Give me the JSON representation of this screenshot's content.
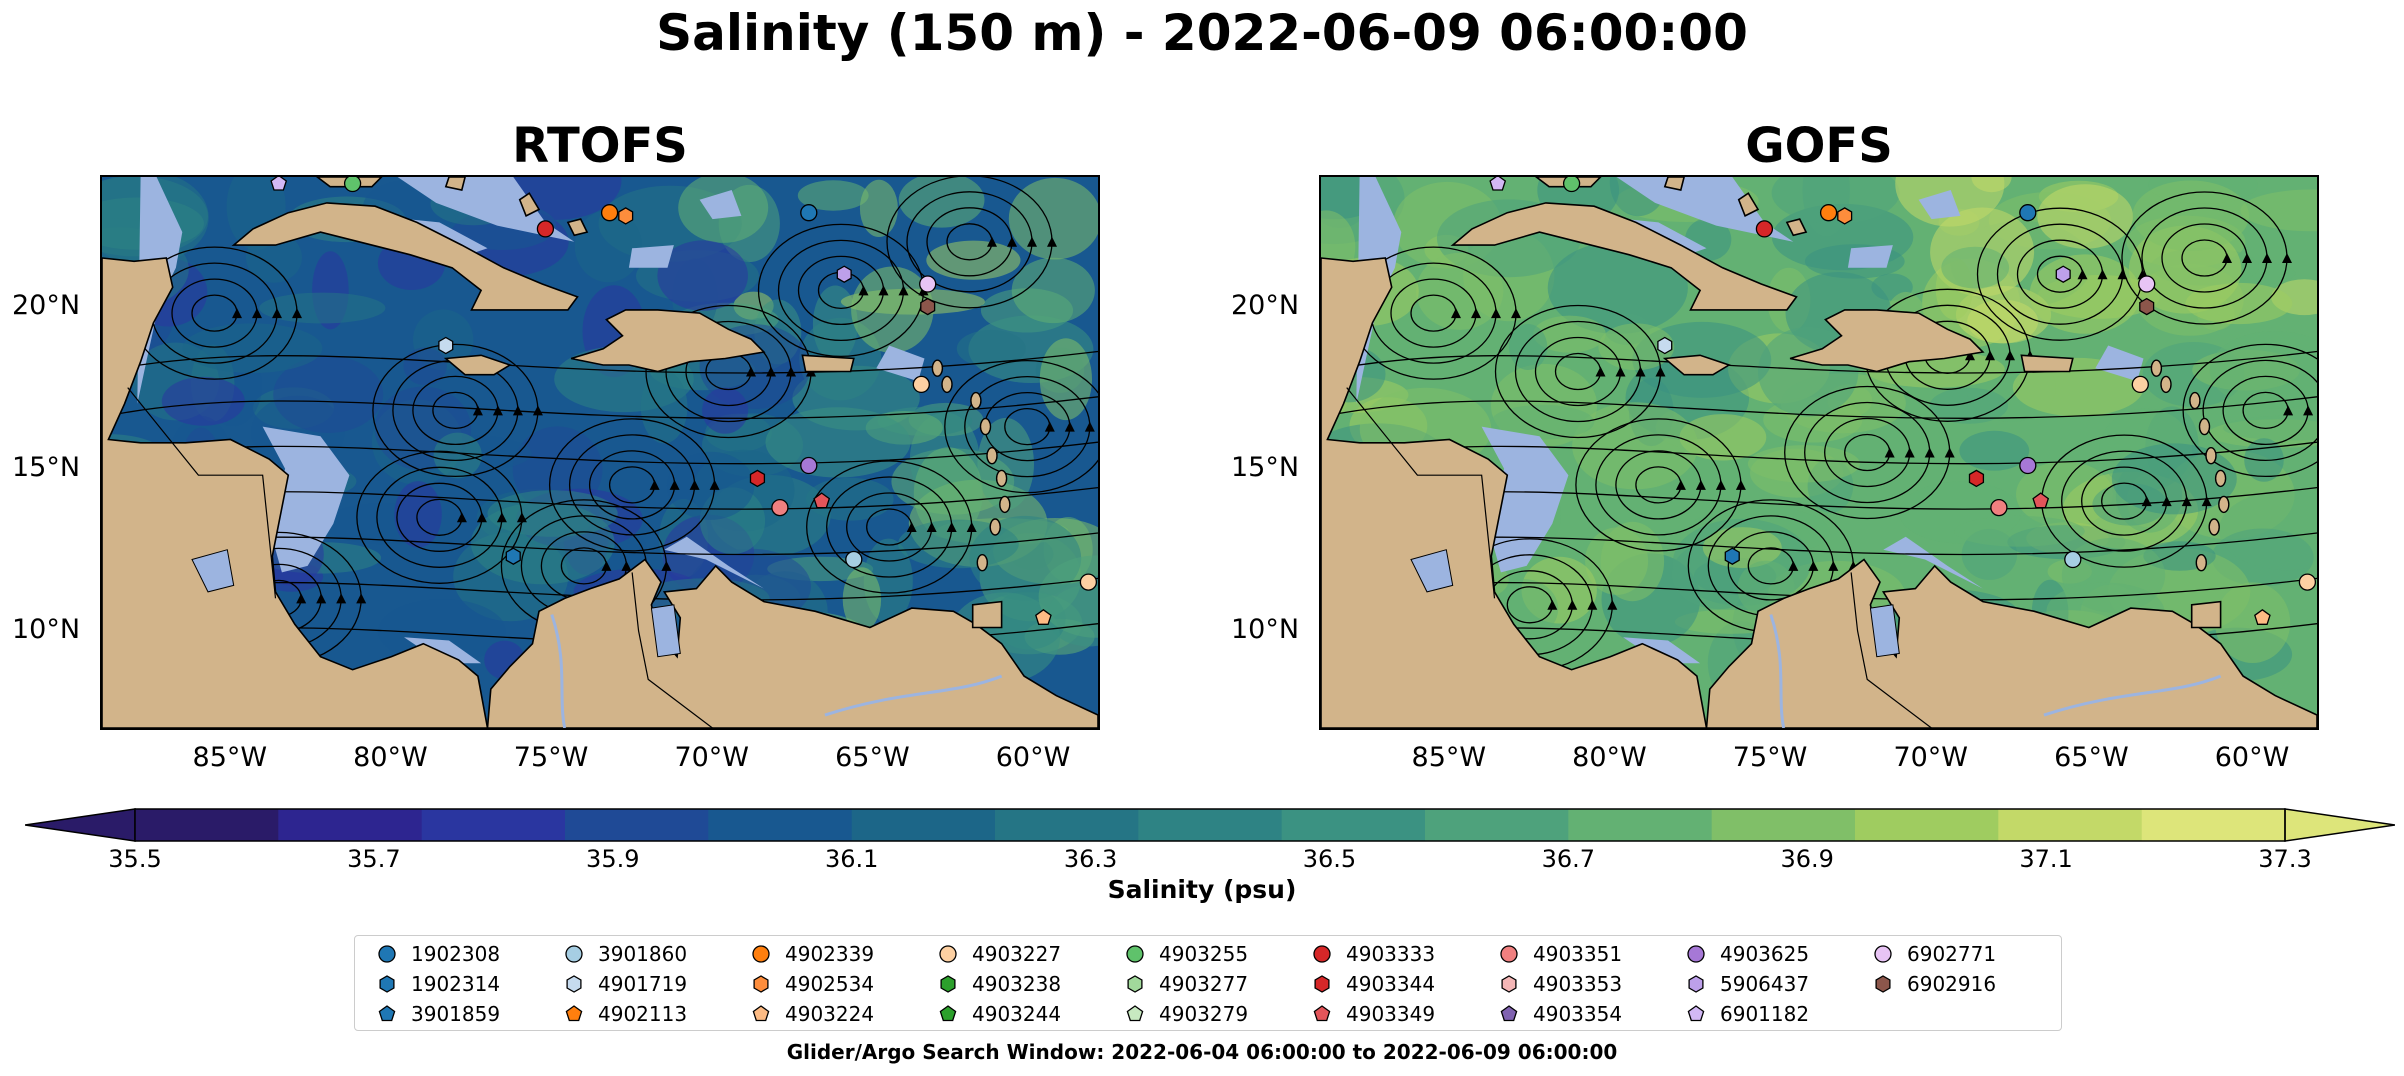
{
  "title": "Salinity (150 m) - 2022-06-09 06:00:00",
  "panels": [
    {
      "title": "RTOFS",
      "variant": "rtofs"
    },
    {
      "title": "GOFS",
      "variant": "gofs"
    }
  ],
  "map_axes": {
    "lon_ticks": [
      "85°W",
      "80°W",
      "75°W",
      "70°W",
      "65°W",
      "60°W"
    ],
    "lat_ticks": [
      "20°N",
      "15°N",
      "10°N"
    ],
    "lon_range": [
      -89,
      -58
    ],
    "lat_range": [
      7,
      24
    ]
  },
  "colorbar": {
    "label": "Salinity (psu)",
    "ticks": [
      "35.5",
      "35.7",
      "35.9",
      "36.1",
      "36.3",
      "36.5",
      "36.7",
      "36.9",
      "37.1",
      "37.3"
    ],
    "range": [
      35.5,
      37.3
    ],
    "extend": "both",
    "colors": [
      "#2a1b68",
      "#2d2590",
      "#2a36a0",
      "#1f4a96",
      "#185890",
      "#1c6688",
      "#257585",
      "#2e8384",
      "#3b9282",
      "#4ea27c",
      "#63b173",
      "#80bf68",
      "#9fcc60",
      "#c3d968",
      "#dde57a"
    ]
  },
  "colors": {
    "land": "#d2b48a",
    "shallow_water": "#9cb4e0",
    "deep_salinity": "#281a68"
  },
  "legend": {
    "columns": [
      [
        {
          "id": "1902308",
          "marker": "circle",
          "color": "#1f77b4"
        },
        {
          "id": "1902314",
          "marker": "hexagon",
          "color": "#1f77b4"
        },
        {
          "id": "3901859",
          "marker": "pentagon",
          "color": "#1f77b4"
        }
      ],
      [
        {
          "id": "3901860",
          "marker": "circle",
          "color": "#a6cee3"
        },
        {
          "id": "4901719",
          "marker": "hexagon",
          "color": "#c6dbef"
        },
        {
          "id": "4902113",
          "marker": "pentagon",
          "color": "#ff7f0e"
        }
      ],
      [
        {
          "id": "4902339",
          "marker": "circle",
          "color": "#ff7f0e"
        },
        {
          "id": "4902534",
          "marker": "hexagon",
          "color": "#fd8d3c"
        },
        {
          "id": "4903224",
          "marker": "pentagon",
          "color": "#fdbb84"
        }
      ],
      [
        {
          "id": "4903227",
          "marker": "circle",
          "color": "#fdd0a2"
        },
        {
          "id": "4903238",
          "marker": "hexagon",
          "color": "#2ca02c"
        },
        {
          "id": "4903244",
          "marker": "pentagon",
          "color": "#2ca02c"
        }
      ],
      [
        {
          "id": "4903255",
          "marker": "circle",
          "color": "#5fc26b"
        },
        {
          "id": "4903277",
          "marker": "hexagon",
          "color": "#a1d99b"
        },
        {
          "id": "4903279",
          "marker": "pentagon",
          "color": "#c7e9c0"
        }
      ],
      [
        {
          "id": "4903333",
          "marker": "circle",
          "color": "#d62728"
        },
        {
          "id": "4903344",
          "marker": "hexagon",
          "color": "#d62728"
        },
        {
          "id": "4903349",
          "marker": "pentagon",
          "color": "#e3555a"
        }
      ],
      [
        {
          "id": "4903351",
          "marker": "circle",
          "color": "#f08080"
        },
        {
          "id": "4903353",
          "marker": "hexagon",
          "color": "#f4b6b6"
        },
        {
          "id": "4903354",
          "marker": "pentagon",
          "color": "#8062b0"
        }
      ],
      [
        {
          "id": "4903625",
          "marker": "circle",
          "color": "#a678d6"
        },
        {
          "id": "5906437",
          "marker": "hexagon",
          "color": "#bda0ea"
        },
        {
          "id": "6901182",
          "marker": "pentagon",
          "color": "#d2b8f5"
        }
      ],
      [
        {
          "id": "6902771",
          "marker": "circle",
          "color": "#e8c4f5"
        },
        {
          "id": "6902916",
          "marker": "hexagon",
          "color": "#8c564b"
        }
      ]
    ]
  },
  "floats": [
    {
      "id": "6901182",
      "lon": -83.5,
      "lat": 23.8
    },
    {
      "id": "4903255",
      "lon": -81.2,
      "lat": 23.8
    },
    {
      "id": "4903333",
      "lon": -75.2,
      "lat": 22.4
    },
    {
      "id": "4902339",
      "lon": -73.2,
      "lat": 22.9
    },
    {
      "id": "4902534",
      "lon": -72.7,
      "lat": 22.8
    },
    {
      "id": "1902308",
      "lon": -67.0,
      "lat": 22.9
    },
    {
      "id": "5906437",
      "lon": -65.9,
      "lat": 21.0
    },
    {
      "id": "6902771",
      "lon": -63.3,
      "lat": 20.7
    },
    {
      "id": "6902916",
      "lon": -63.3,
      "lat": 20.0
    },
    {
      "id": "4901719",
      "lon": -78.3,
      "lat": 18.8
    },
    {
      "id": "4903227",
      "lon": -63.5,
      "lat": 17.6
    },
    {
      "id": "4903625",
      "lon": -67.0,
      "lat": 15.1
    },
    {
      "id": "4903344",
      "lon": -68.6,
      "lat": 14.7
    },
    {
      "id": "4903351",
      "lon": -67.9,
      "lat": 13.8
    },
    {
      "id": "4903349",
      "lon": -66.6,
      "lat": 14.0
    },
    {
      "id": "3901860",
      "lon": -65.6,
      "lat": 12.2
    },
    {
      "id": "1902314",
      "lon": -76.2,
      "lat": 12.3
    },
    {
      "id": "4903224",
      "lon": -59.7,
      "lat": 10.4
    },
    {
      "id": "4903227",
      "lon": -58.3,
      "lat": 11.5
    }
  ],
  "footer": "Glider/Argo Search Window: 2022-06-04 06:00:00 to 2022-06-09 06:00:00"
}
